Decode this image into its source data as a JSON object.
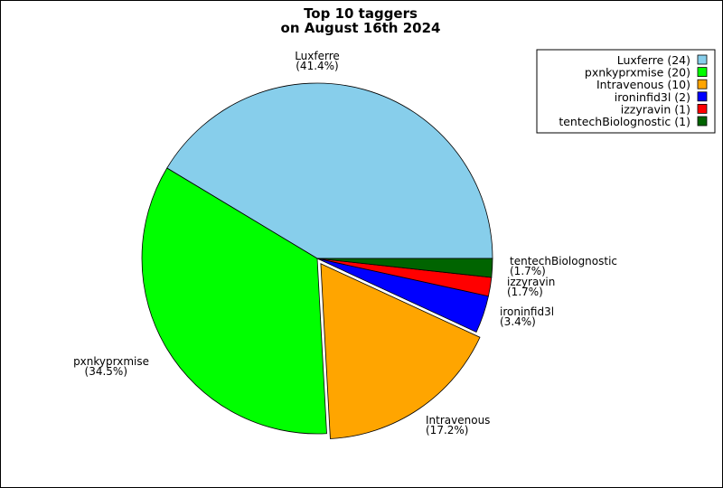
{
  "chart_data": {
    "type": "pie",
    "title": [
      "Top 10 taggers",
      "on August 16th 2024"
    ],
    "slices": [
      {
        "name": "Luxferre",
        "value": 24,
        "percent": "41.4%",
        "color": "#87ceeb"
      },
      {
        "name": "pxnkyprxmise",
        "value": 20,
        "percent": "34.5%",
        "color": "#00ff00"
      },
      {
        "name": "Intravenous",
        "value": 10,
        "percent": "17.2%",
        "color": "#ffa500"
      },
      {
        "name": "ironinfid3l",
        "value": 2,
        "percent": "3.4%",
        "color": "#0000ff"
      },
      {
        "name": "izzyravin",
        "value": 1,
        "percent": "1.7%",
        "color": "#ff0000"
      },
      {
        "name": "tentechBiolognostic",
        "value": 1,
        "percent": "1.7%",
        "color": "#006400"
      }
    ],
    "legend": {
      "placement": "top-right",
      "entries": [
        "Luxferre (24)",
        "pxnkyprxmise (20)",
        "Intravenous (10)",
        "ironinfid3l (2)",
        "izzyravin (1)",
        "tentechBiolognostic (1)"
      ]
    },
    "exploded_slice": "Intravenous"
  }
}
